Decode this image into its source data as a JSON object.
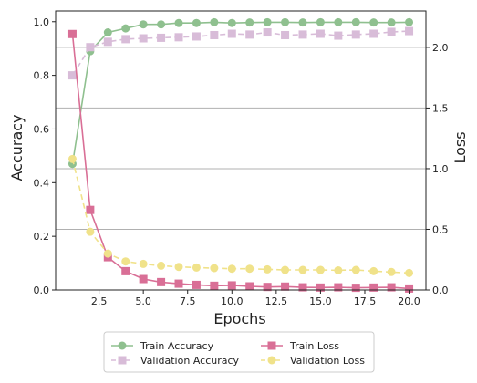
{
  "chart_data": {
    "type": "line",
    "xlabel": "Epochs",
    "ylabel_left": "Accuracy",
    "ylabel_right": "Loss",
    "xlim": [
      0.05,
      20.95
    ],
    "ylim_left": [
      0.0,
      1.04
    ],
    "ylim_right": [
      0.0,
      2.3
    ],
    "x_ticks": [
      "2.5",
      "5.0",
      "7.5",
      "10.0",
      "12.5",
      "15.0",
      "17.5",
      "20.0"
    ],
    "y_left_ticks": [
      "0.0",
      "0.2",
      "0.4",
      "0.6",
      "0.8",
      "1.0"
    ],
    "y_right_ticks": [
      "0.0",
      "0.5",
      "1.0",
      "1.5",
      "2.0"
    ],
    "grid": "horizontal lines at right-axis ticks",
    "legend_position": "bottom-center, below plot",
    "x": [
      1,
      2,
      3,
      4,
      5,
      6,
      7,
      8,
      9,
      10,
      11,
      12,
      13,
      14,
      15,
      16,
      17,
      18,
      19,
      20
    ],
    "series": [
      {
        "name": "Train Accuracy",
        "axis": "left",
        "color": "#8fc08f",
        "marker": "circle",
        "linestyle": "solid",
        "values": [
          0.47,
          0.89,
          0.96,
          0.975,
          0.99,
          0.99,
          0.995,
          0.995,
          0.998,
          0.995,
          0.997,
          0.998,
          0.998,
          0.997,
          0.998,
          0.998,
          0.998,
          0.997,
          0.997,
          0.998
        ]
      },
      {
        "name": "Validation Accuracy",
        "axis": "left",
        "color": "#d8bcd8",
        "marker": "square",
        "linestyle": "dashed",
        "values": [
          0.8,
          0.905,
          0.925,
          0.935,
          0.938,
          0.94,
          0.942,
          0.945,
          0.95,
          0.955,
          0.952,
          0.96,
          0.95,
          0.952,
          0.955,
          0.948,
          0.952,
          0.955,
          0.962,
          0.965
        ]
      },
      {
        "name": "Train Loss",
        "axis": "right",
        "color": "#d96f96",
        "marker": "square",
        "linestyle": "solid",
        "values": [
          2.11,
          0.66,
          0.27,
          0.155,
          0.09,
          0.065,
          0.052,
          0.042,
          0.035,
          0.038,
          0.03,
          0.025,
          0.028,
          0.022,
          0.02,
          0.022,
          0.018,
          0.02,
          0.022,
          0.012
        ]
      },
      {
        "name": "Validation Loss",
        "axis": "right",
        "color": "#f0e28a",
        "marker": "circle",
        "linestyle": "dashed",
        "values": [
          1.08,
          0.48,
          0.3,
          0.235,
          0.215,
          0.2,
          0.19,
          0.185,
          0.18,
          0.175,
          0.175,
          0.17,
          0.165,
          0.165,
          0.165,
          0.162,
          0.165,
          0.155,
          0.148,
          0.14
        ]
      }
    ]
  }
}
